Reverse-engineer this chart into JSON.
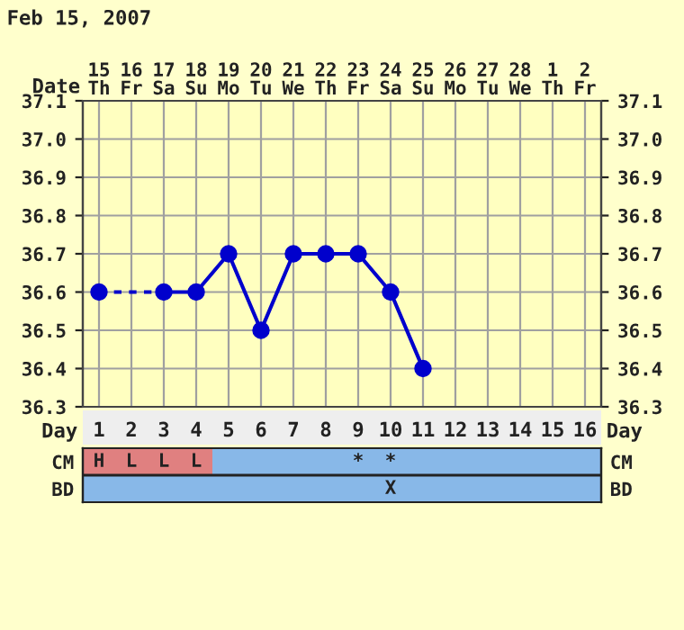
{
  "chart_data": [
    {
      "type": "line",
      "title": "Feb 15, 2007",
      "xlabel": "Date",
      "categories": [
        "15\nTh",
        "16\nFr",
        "17\nSa",
        "18\nSu",
        "19\nMo",
        "20\nTu",
        "21\nWe",
        "22\nTh",
        "23\nFr",
        "24\nSa",
        "25\nSu",
        "26\nMo",
        "27\nTu",
        "28\nWe",
        "1\nTh",
        "2\nFr"
      ],
      "ylim": [
        36.3,
        37.1
      ],
      "yticks": [
        {
          "value": 36.3,
          "label": "36.3"
        },
        {
          "value": 36.4,
          "label": "36.4"
        },
        {
          "value": 36.5,
          "label": "36.5"
        },
        {
          "value": 36.6,
          "label": "36.6"
        },
        {
          "value": 36.7,
          "label": "36.7"
        },
        {
          "value": 36.8,
          "label": "36.8"
        },
        {
          "value": 36.9,
          "label": "36.9"
        },
        {
          "value": 37.0,
          "label": "37.0"
        },
        {
          "value": 37.1,
          "label": "37.1"
        }
      ],
      "y2lim": [
        36.3,
        37.1
      ],
      "y2ticks": [
        {
          "value": 36.3,
          "label": "36.3"
        },
        {
          "value": 36.4,
          "label": "36.4"
        },
        {
          "value": 36.5,
          "label": "36.5"
        },
        {
          "value": 36.6,
          "label": "36.6"
        },
        {
          "value": 36.7,
          "label": "36.7"
        },
        {
          "value": 36.8,
          "label": "36.8"
        },
        {
          "value": 36.9,
          "label": "36.9"
        },
        {
          "value": 37.0,
          "label": "37.0"
        },
        {
          "value": 37.1,
          "label": "37.1"
        }
      ],
      "grid": true,
      "marker": "circle",
      "line_style": "solid",
      "series": [
        {
          "color": "#0000cc",
          "values": [
            36.6,
            null,
            36.6,
            36.6,
            36.7,
            36.5,
            36.7,
            36.7,
            36.7,
            36.6,
            36.4,
            null,
            null,
            null,
            null,
            null
          ]
        }
      ]
    },
    {
      "type": "heatmap",
      "xlabel": "Day",
      "categories": [
        "1",
        "2",
        "3",
        "4",
        "5",
        "6",
        "7",
        "8",
        "9",
        "10",
        "11",
        "12",
        "13",
        "14",
        "15",
        "16"
      ],
      "y_categories": [
        "CM",
        "BD"
      ],
      "y2_categories": [
        "CM",
        "BD"
      ],
      "colors": [
        [
          "#e08080",
          "#e08080",
          "#e08080",
          "#e08080",
          "#88b8e8",
          "#88b8e8",
          "#88b8e8",
          "#88b8e8",
          "#88b8e8",
          "#88b8e8",
          "#88b8e8",
          "#88b8e8",
          "#88b8e8",
          "#88b8e8",
          "#88b8e8",
          "#88b8e8"
        ],
        [
          "#88b8e8",
          "#88b8e8",
          "#88b8e8",
          "#88b8e8",
          "#88b8e8",
          "#88b8e8",
          "#88b8e8",
          "#88b8e8",
          "#88b8e8",
          "#88b8e8",
          "#88b8e8",
          "#88b8e8",
          "#88b8e8",
          "#88b8e8",
          "#88b8e8",
          "#88b8e8"
        ]
      ],
      "cells": [
        [
          null,
          null,
          null,
          null,
          null,
          null,
          null,
          null,
          null,
          null,
          null,
          null,
          null,
          null,
          null,
          null
        ],
        [
          null,
          null,
          null,
          null,
          null,
          null,
          null,
          null,
          null,
          null,
          null,
          null,
          null,
          null,
          null,
          null
        ]
      ],
      "cell_labels": [
        [
          "H",
          "L",
          "L",
          "L",
          null,
          null,
          null,
          null,
          "*",
          "*",
          null,
          null,
          null,
          null,
          null,
          null
        ],
        [
          null,
          null,
          null,
          null,
          null,
          null,
          null,
          null,
          null,
          "X",
          null,
          null,
          null,
          null,
          null,
          null
        ]
      ]
    }
  ]
}
